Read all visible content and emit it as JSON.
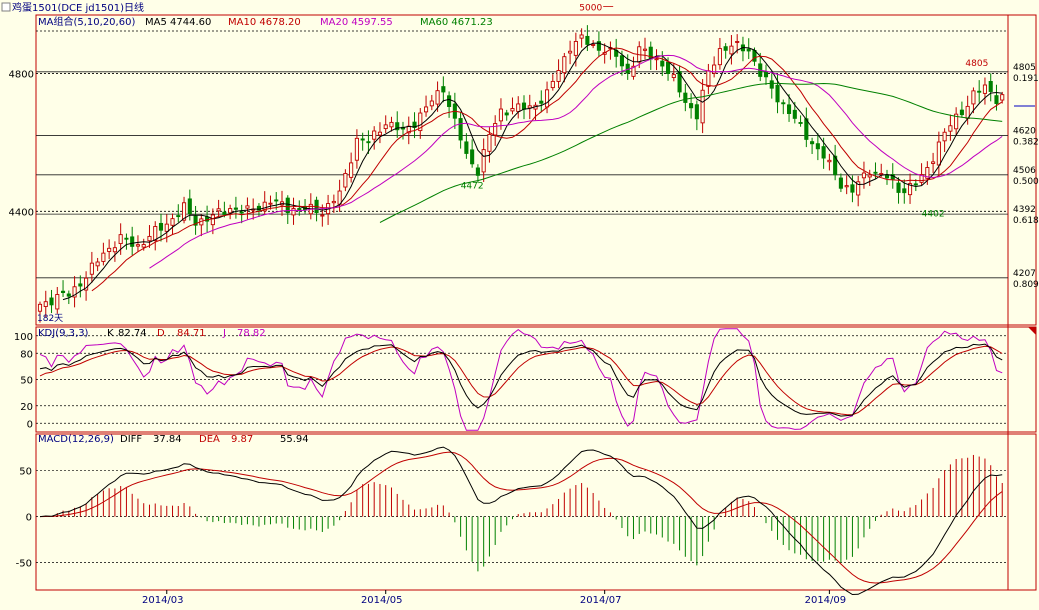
{
  "chart_data": {
    "type": "candlestick-with-indicators",
    "title": "鸡蛋1501(DCE jd1501)日线",
    "x_tick_labels": [
      "2014/03",
      "2014/05",
      "2014/07",
      "2014/09"
    ],
    "price_panel": {
      "legend": [
        {
          "label": "MA组合(5,10,20,60)",
          "color": "#000080"
        },
        {
          "label": "MA5 4744.60",
          "color": "#000000"
        },
        {
          "label": "MA10 4678.20",
          "color": "#c00000"
        },
        {
          "label": "MA20 4597.55",
          "color": "#c000c0"
        },
        {
          "label": "MA60 4671.23",
          "color": "#008000"
        }
      ],
      "ylim": [
        4070,
        4970
      ],
      "y_ticks": [
        4400,
        4800
      ],
      "fib_levels": [
        {
          "price": 4805,
          "ratio": "0.191"
        },
        {
          "price": 4620,
          "ratio": "0.382"
        },
        {
          "price": 4506,
          "ratio": "0.500"
        },
        {
          "price": 4392,
          "ratio": "0.618"
        },
        {
          "price": 4207,
          "ratio": "0.809"
        }
      ],
      "annotations": [
        {
          "text": "5000",
          "date_index": 100,
          "price": 4995
        },
        {
          "text": "4472",
          "date_index": 75,
          "price": 4472
        },
        {
          "text": "4402",
          "date_index": 155,
          "price": 4402
        },
        {
          "text": "4805",
          "date_index": 162,
          "price": 4805
        },
        {
          "text": "182天",
          "date_index": 0,
          "price": 4100
        }
      ],
      "close_anchors": [
        [
          0,
          4130
        ],
        [
          3,
          4150
        ],
        [
          5,
          4160
        ],
        [
          8,
          4210
        ],
        [
          11,
          4280
        ],
        [
          14,
          4320
        ],
        [
          17,
          4300
        ],
        [
          20,
          4340
        ],
        [
          22,
          4365
        ],
        [
          25,
          4410
        ],
        [
          27,
          4370
        ],
        [
          30,
          4385
        ],
        [
          33,
          4410
        ],
        [
          36,
          4400
        ],
        [
          40,
          4430
        ],
        [
          43,
          4410
        ],
        [
          47,
          4405
        ],
        [
          49,
          4400
        ],
        [
          52,
          4450
        ],
        [
          55,
          4610
        ],
        [
          57,
          4600
        ],
        [
          60,
          4660
        ],
        [
          63,
          4630
        ],
        [
          65,
          4660
        ],
        [
          68,
          4720
        ],
        [
          70,
          4760
        ],
        [
          72,
          4660
        ],
        [
          74,
          4560
        ],
        [
          76,
          4520
        ],
        [
          78,
          4620
        ],
        [
          80,
          4690
        ],
        [
          82,
          4700
        ],
        [
          85,
          4700
        ],
        [
          88,
          4740
        ],
        [
          90,
          4810
        ],
        [
          92,
          4880
        ],
        [
          94,
          4900
        ],
        [
          96,
          4880
        ],
        [
          98,
          4870
        ],
        [
          100,
          4850
        ],
        [
          102,
          4800
        ],
        [
          104,
          4870
        ],
        [
          106,
          4850
        ],
        [
          108,
          4830
        ],
        [
          110,
          4780
        ],
        [
          112,
          4720
        ],
        [
          114,
          4680
        ],
        [
          116,
          4800
        ],
        [
          118,
          4870
        ],
        [
          120,
          4880
        ],
        [
          123,
          4870
        ],
        [
          125,
          4800
        ],
        [
          128,
          4730
        ],
        [
          130,
          4690
        ],
        [
          133,
          4620
        ],
        [
          136,
          4560
        ],
        [
          139,
          4480
        ],
        [
          141,
          4460
        ],
        [
          144,
          4520
        ],
        [
          147,
          4500
        ],
        [
          149,
          4460
        ],
        [
          152,
          4480
        ],
        [
          154,
          4520
        ],
        [
          156,
          4600
        ],
        [
          158,
          4650
        ],
        [
          160,
          4690
        ],
        [
          162,
          4740
        ],
        [
          164,
          4760
        ],
        [
          166,
          4730
        ]
      ]
    },
    "kdj_panel": {
      "legend": [
        {
          "label": "KDJ(9,3,3)",
          "color": "#000080"
        },
        {
          "label": "K",
          "color": "#000000"
        },
        {
          "label": "82.74",
          "color": "#000000"
        },
        {
          "label": "D",
          "color": "#c00000"
        },
        {
          "label": "84.71",
          "color": "#c00000"
        },
        {
          "label": "J",
          "color": "#c000c0"
        },
        {
          "label": "78.82",
          "color": "#c000c0"
        }
      ],
      "ylim": [
        -10,
        110
      ],
      "y_ticks": [
        0,
        20,
        50,
        80,
        100
      ]
    },
    "macd_panel": {
      "legend": [
        {
          "label": "MACD(12,26,9)",
          "color": "#000080"
        },
        {
          "label": "DIFF",
          "color": "#000000"
        },
        {
          "label": "37.84",
          "color": "#000000"
        },
        {
          "label": "DEA",
          "color": "#c00000"
        },
        {
          "label": "9.87",
          "color": "#c00000"
        },
        {
          "label": "55.94",
          "color": "#000000"
        }
      ],
      "ylim": [
        -80,
        90
      ],
      "y_ticks": [
        -50,
        0,
        50
      ]
    }
  }
}
